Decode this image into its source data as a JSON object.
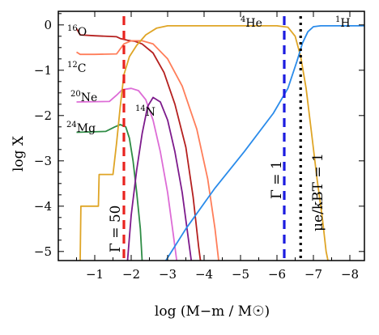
{
  "chart_data": {
    "type": "line",
    "xlabel": "log (M−m / M☉)",
    "ylabel": "log X",
    "xlim": [
      0,
      -8.4
    ],
    "ylim": [
      -5.2,
      0.3
    ],
    "x_ticks": [
      -1,
      -2,
      -3,
      -4,
      -5,
      -6,
      -7,
      -8
    ],
    "x_tick_labels": [
      "−1",
      "−2",
      "−3",
      "−4",
      "−5",
      "−6",
      "−7",
      "−8"
    ],
    "y_ticks": [
      0,
      -1,
      -2,
      -3,
      -4,
      -5
    ],
    "y_tick_labels": [
      "0",
      "−1",
      "−2",
      "−3",
      "−4",
      "−5"
    ],
    "grid": false,
    "series": [
      {
        "name": "16O",
        "color": "#b5201f",
        "points": [
          [
            -0.5,
            -0.08
          ],
          [
            -0.6,
            -0.22
          ],
          [
            -1.0,
            -0.24
          ],
          [
            -1.6,
            -0.26
          ],
          [
            -1.7,
            -0.3
          ],
          [
            -1.9,
            -0.34
          ],
          [
            -2.1,
            -0.36
          ],
          [
            -2.3,
            -0.42
          ],
          [
            -2.6,
            -0.62
          ],
          [
            -2.9,
            -1.05
          ],
          [
            -3.2,
            -1.75
          ],
          [
            -3.5,
            -2.7
          ],
          [
            -3.7,
            -3.8
          ],
          [
            -3.85,
            -4.9
          ],
          [
            -3.9,
            -5.2
          ]
        ]
      },
      {
        "name": "12C",
        "color": "#ff7e5a",
        "points": [
          [
            -0.5,
            -0.6
          ],
          [
            -0.6,
            -0.65
          ],
          [
            -1.0,
            -0.65
          ],
          [
            -1.6,
            -0.64
          ],
          [
            -1.8,
            -0.42
          ],
          [
            -2.0,
            -0.35
          ],
          [
            -2.3,
            -0.35
          ],
          [
            -2.6,
            -0.42
          ],
          [
            -3.0,
            -0.75
          ],
          [
            -3.4,
            -1.35
          ],
          [
            -3.8,
            -2.3
          ],
          [
            -4.1,
            -3.4
          ],
          [
            -4.3,
            -4.5
          ],
          [
            -4.4,
            -5.2
          ]
        ]
      },
      {
        "name": "20Ne",
        "color": "#dd6cd6",
        "points": [
          [
            -0.5,
            -1.7
          ],
          [
            -1.4,
            -1.69
          ],
          [
            -1.6,
            -1.55
          ],
          [
            -1.75,
            -1.43
          ],
          [
            -2.0,
            -1.4
          ],
          [
            -2.2,
            -1.45
          ],
          [
            -2.4,
            -1.65
          ],
          [
            -2.6,
            -2.1
          ],
          [
            -2.8,
            -2.8
          ],
          [
            -3.0,
            -3.7
          ],
          [
            -3.15,
            -4.6
          ],
          [
            -3.25,
            -5.2
          ]
        ]
      },
      {
        "name": "24Mg",
        "color": "#2e8c45",
        "points": [
          [
            -0.5,
            -2.37
          ],
          [
            -1.3,
            -2.35
          ],
          [
            -1.55,
            -2.25
          ],
          [
            -1.7,
            -2.2
          ],
          [
            -1.85,
            -2.25
          ],
          [
            -1.95,
            -2.5
          ],
          [
            -2.05,
            -3.0
          ],
          [
            -2.15,
            -3.7
          ],
          [
            -2.25,
            -4.5
          ],
          [
            -2.3,
            -5.2
          ]
        ]
      },
      {
        "name": "14N",
        "color": "#7d1a8c",
        "points": [
          [
            -1.9,
            -5.2
          ],
          [
            -2.0,
            -4.2
          ],
          [
            -2.15,
            -3.2
          ],
          [
            -2.3,
            -2.4
          ],
          [
            -2.45,
            -1.8
          ],
          [
            -2.6,
            -1.6
          ],
          [
            -2.8,
            -1.7
          ],
          [
            -3.0,
            -2.1
          ],
          [
            -3.2,
            -2.8
          ],
          [
            -3.4,
            -3.7
          ],
          [
            -3.55,
            -4.6
          ],
          [
            -3.65,
            -5.2
          ]
        ]
      },
      {
        "name": "4He",
        "color": "#dfa526",
        "points": [
          [
            -0.6,
            -5.2
          ],
          [
            -0.62,
            -4.0
          ],
          [
            -1.1,
            -4.0
          ],
          [
            -1.12,
            -3.3
          ],
          [
            -1.5,
            -3.3
          ],
          [
            -1.6,
            -2.6
          ],
          [
            -1.7,
            -1.8
          ],
          [
            -1.8,
            -1.1
          ],
          [
            -1.95,
            -0.7
          ],
          [
            -2.15,
            -0.45
          ],
          [
            -2.4,
            -0.22
          ],
          [
            -2.7,
            -0.07
          ],
          [
            -3.0,
            -0.02
          ],
          [
            -6.0,
            -0.02
          ],
          [
            -6.3,
            -0.05
          ],
          [
            -6.5,
            -0.25
          ],
          [
            -6.65,
            -0.7
          ],
          [
            -6.8,
            -1.4
          ],
          [
            -6.95,
            -2.4
          ],
          [
            -7.1,
            -3.4
          ],
          [
            -7.25,
            -4.3
          ],
          [
            -7.35,
            -5.0
          ],
          [
            -7.4,
            -5.2
          ]
        ]
      },
      {
        "name": "1H",
        "color": "#2a8bea",
        "points": [
          [
            -2.95,
            -5.2
          ],
          [
            -3.5,
            -4.5
          ],
          [
            -4.3,
            -3.6
          ],
          [
            -5.1,
            -2.8
          ],
          [
            -5.9,
            -1.95
          ],
          [
            -6.3,
            -1.4
          ],
          [
            -6.55,
            -0.8
          ],
          [
            -6.7,
            -0.4
          ],
          [
            -6.85,
            -0.15
          ],
          [
            -7.0,
            -0.04
          ],
          [
            -7.2,
            -0.02
          ],
          [
            -8.4,
            -0.02
          ]
        ]
      }
    ],
    "vertical_lines": [
      {
        "x": -1.8,
        "label": "Γ = 50",
        "color": "#e8231f",
        "style": "dashed"
      },
      {
        "x": -6.2,
        "label": "Γ = 1",
        "color": "#1c1ce0",
        "style": "dashed"
      },
      {
        "x": -6.65,
        "label": "μe/kBT = 1",
        "color": "#000000",
        "style": "dotted"
      }
    ],
    "annotations": {
      "o16": {
        "sup": "16",
        "base": "O"
      },
      "c12": {
        "sup": "12",
        "base": "C"
      },
      "ne20": {
        "sup": "20",
        "base": "Ne"
      },
      "mg24": {
        "sup": "24",
        "base": "Mg"
      },
      "n14": {
        "sup": "14",
        "base": "N"
      },
      "he4": {
        "sup": "4",
        "base": "He"
      },
      "h1": {
        "sup": "1",
        "base": "H"
      }
    }
  }
}
